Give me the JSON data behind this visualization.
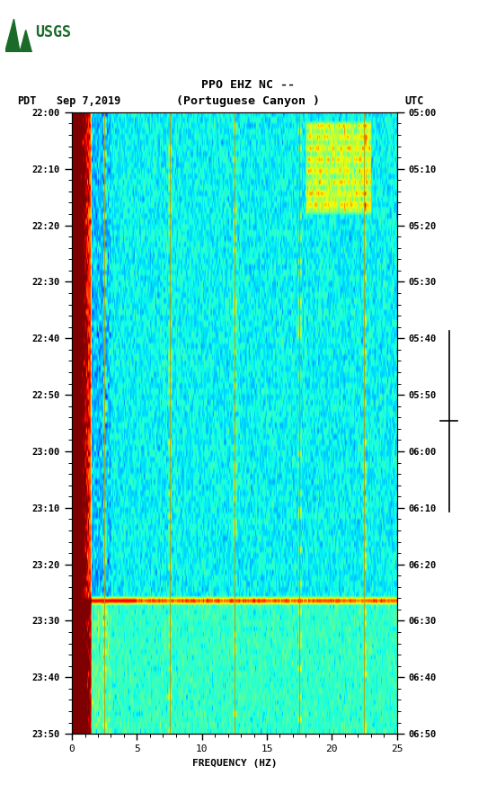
{
  "title_line1": "PPO EHZ NC --",
  "title_line2": "(Portuguese Canyon )",
  "date_label": "Sep 7,2019",
  "left_tz": "PDT",
  "right_tz": "UTC",
  "xlabel": "FREQUENCY (HZ)",
  "freq_min": 0,
  "freq_max": 25,
  "time_labels_pdt": [
    "22:00",
    "22:10",
    "22:20",
    "22:30",
    "22:40",
    "22:50",
    "23:00",
    "23:10",
    "23:20",
    "23:30",
    "23:40",
    "23:50"
  ],
  "time_labels_utc": [
    "05:00",
    "05:10",
    "05:20",
    "05:30",
    "05:40",
    "05:50",
    "06:00",
    "06:10",
    "06:20",
    "06:30",
    "06:40",
    "06:50"
  ],
  "vertical_lines_freq": [
    2.5,
    7.5,
    12.5,
    17.5,
    22.5
  ],
  "bg_color": "#ffffff",
  "colormap": "jet",
  "vmin": -185,
  "vmax": -75,
  "fig_width": 5.52,
  "fig_height": 8.92,
  "dpi": 100,
  "num_time_steps": 110,
  "num_freq_steps": 300,
  "event_row": 86,
  "usgs_color": "#1a6b2a"
}
